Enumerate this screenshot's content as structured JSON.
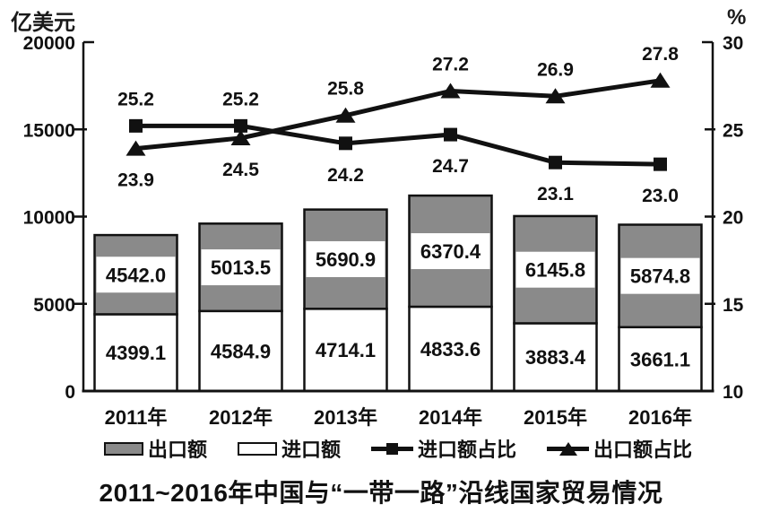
{
  "title": "2011~2016年中国与“一带一路”沿线国家贸易情况",
  "units": {
    "left": "亿美元",
    "right": "%"
  },
  "colors": {
    "bar_export_fill": "#8a8a8a",
    "bar_import_fill": "#ffffff",
    "stroke": "#111111",
    "background": "#ffffff"
  },
  "legend": [
    {
      "label": "出口额",
      "type": "box",
      "fill": "#8a8a8a"
    },
    {
      "label": "进口额",
      "type": "box",
      "fill": "#ffffff"
    },
    {
      "label": "进口额占比",
      "type": "line",
      "marker": "square"
    },
    {
      "label": "出口额占比",
      "type": "line",
      "marker": "triangle"
    }
  ],
  "chart_data": {
    "type": "combo-stacked-bar-line",
    "title": "2011~2016年中国与“一带一路”沿线国家贸易情况",
    "categories": [
      "2011年",
      "2012年",
      "2013年",
      "2014年",
      "2015年",
      "2016年"
    ],
    "left_axis": {
      "label": "亿美元",
      "min": 0,
      "max": 20000,
      "ticks": [
        0,
        5000,
        10000,
        15000,
        20000
      ]
    },
    "right_axis": {
      "label": "%",
      "min": 10,
      "max": 30,
      "ticks": [
        10,
        15,
        20,
        25,
        30
      ]
    },
    "grid": false,
    "legend_position": "bottom",
    "series": [
      {
        "name": "出口额",
        "type": "bar",
        "axis": "left",
        "stack": "trade",
        "stack_order": "top",
        "fill": "#8a8a8a",
        "values": [
          4542.0,
          5013.5,
          5690.9,
          6370.4,
          6145.8,
          5874.8
        ],
        "labels": [
          "4542.0",
          "5013.5",
          "5690.9",
          "6370.4",
          "6145.8",
          "5874.8"
        ]
      },
      {
        "name": "进口额",
        "type": "bar",
        "axis": "left",
        "stack": "trade",
        "stack_order": "bottom",
        "fill": "#ffffff",
        "values": [
          4399.1,
          4584.9,
          4714.1,
          4833.6,
          3883.4,
          3661.1
        ],
        "labels": [
          "4399.1",
          "4584.9",
          "4714.1",
          "4833.6",
          "3883.4",
          "3661.1"
        ]
      },
      {
        "name": "进口额占比",
        "type": "line",
        "axis": "right",
        "marker": "square",
        "values": [
          25.2,
          25.2,
          24.2,
          24.7,
          23.1,
          23.0
        ],
        "labels": [
          "25.2",
          "25.2",
          "24.2",
          "24.7",
          "23.1",
          "23.0"
        ],
        "label_side": [
          "above",
          "above",
          "below",
          "below",
          "below",
          "below"
        ]
      },
      {
        "name": "出口额占比",
        "type": "line",
        "axis": "right",
        "marker": "triangle",
        "values": [
          23.9,
          24.5,
          25.8,
          27.2,
          26.9,
          27.8
        ],
        "labels": [
          "23.9",
          "24.5",
          "25.8",
          "27.2",
          "26.9",
          "27.8"
        ],
        "label_side": [
          "below",
          "below",
          "above",
          "above",
          "above",
          "above"
        ]
      }
    ]
  }
}
